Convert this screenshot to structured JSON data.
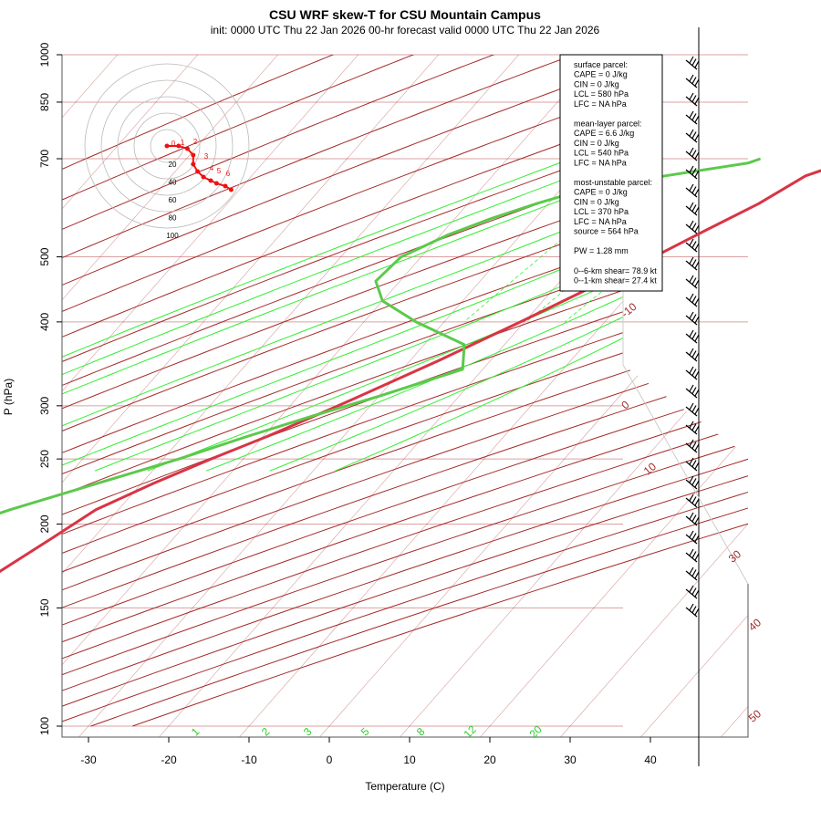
{
  "title": "CSU WRF skew-T for CSU Mountain Campus",
  "subtitle": "init: 0000 UTC Thu 22 Jan 2026     00-hr forecast valid 0000 UTC Thu 22 Jan 2026",
  "colors": {
    "temperature": "#d93445",
    "dewpoint": "#5cc94c",
    "isotherm": "#a52a2a",
    "dry_adiabat": "#a52a2a",
    "moist_adiabat": "#33ee33",
    "mixing_ratio": "#33ee33",
    "isobar": "#dca0a0",
    "hodograph": "#ee1111",
    "grid": "#b9b9b9"
  },
  "chart_data": {
    "type": "line",
    "xlabel": "Temperature (C)",
    "ylabel": "P (hPa)",
    "xlim": [
      -30,
      40
    ],
    "ylim_hpa": [
      1000,
      100
    ],
    "y_scale": "log-pressure",
    "x_ticks": [
      "-30",
      "-20",
      "-10",
      "0",
      "10",
      "20",
      "30",
      "40"
    ],
    "y_ticks": [
      "100",
      "150",
      "200",
      "250",
      "300",
      "400",
      "500",
      "700",
      "850",
      "1000"
    ],
    "isotherm_labels": [
      "-10",
      "0",
      "10",
      "30",
      "40",
      "50"
    ],
    "mixing_ratio_labels": [
      "1",
      "2",
      "3",
      "5",
      "8",
      "12",
      "20"
    ],
    "series": [
      {
        "name": "temperature",
        "pressure": [
          700,
          690,
          680,
          660,
          600,
          550,
          500,
          450,
          400,
          350,
          300,
          270,
          250,
          230,
          210,
          190,
          170,
          150,
          140,
          130,
          120,
          110
        ],
        "values": [
          1.8,
          2.0,
          1.2,
          -1.0,
          -3.8,
          -7.3,
          -11.0,
          -15.5,
          -20.5,
          -26.5,
          -34.0,
          -39.5,
          -44.0,
          -48.5,
          -52.8,
          -55.2,
          -58.0,
          -60.0,
          -58.2,
          -56.4,
          -56.2,
          -56.0
        ]
      },
      {
        "name": "dewpoint",
        "pressure": [
          700,
          690,
          680,
          660,
          640,
          620,
          600,
          570,
          540,
          500,
          460,
          430,
          400,
          370,
          340,
          310,
          290,
          270,
          250,
          230,
          210,
          190
        ],
        "values": [
          -8.5,
          -9.5,
          -12.5,
          -18.5,
          -24.0,
          -28.5,
          -31.5,
          -35.5,
          -39.0,
          -42.5,
          -43.0,
          -40.0,
          -33.5,
          -25.0,
          -22.5,
          -30.0,
          -36.0,
          -42.0,
          -48.0,
          -55.5,
          -63.5,
          -71.0
        ]
      }
    ],
    "parcel_info": {
      "surface": [
        "surface parcel:",
        "CAPE = 0 J/kg",
        "CIN = 0 J/kg",
        "LCL = 580 hPa",
        "LFC = NA hPa"
      ],
      "mean_layer": [
        "mean-layer parcel:",
        "CAPE = 6.6 J/kg",
        "CIN = 0 J/kg",
        "LCL = 540 hPa",
        "LFC = NA hPa"
      ],
      "most_unstable": [
        "most-unstable parcel:",
        "CAPE = 0 J/kg",
        "CIN = 0 J/kg",
        "LCL = 370 hPa",
        "LFC = NA hPa",
        "source = 564 hPa"
      ],
      "pw": "PW =  1.28 mm",
      "shear": [
        "0--6-km shear= 78.9 kt",
        "0--1-km shear= 27.4 kt"
      ]
    },
    "hodograph": {
      "ring_labels": [
        "20",
        "40",
        "60",
        "80",
        "100"
      ],
      "height_labels_km": [
        "0",
        "1",
        "2",
        "3",
        "4",
        "5",
        "6"
      ],
      "points_dx": [
        0,
        8,
        14,
        18,
        18,
        21,
        25,
        30,
        34,
        40,
        44
      ],
      "points_dy": [
        0,
        0,
        3,
        10,
        20,
        28,
        34,
        38,
        41,
        44,
        48
      ]
    }
  }
}
